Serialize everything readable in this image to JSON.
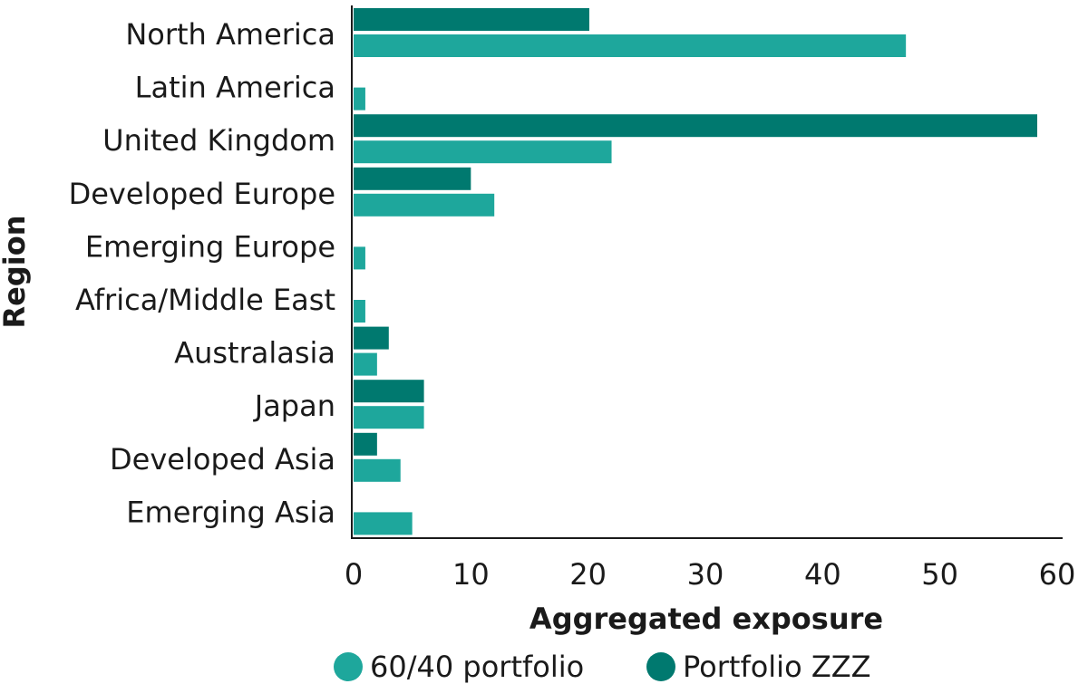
{
  "chart_data": {
    "type": "bar",
    "orientation": "horizontal",
    "title": "",
    "xlabel": "Aggregated exposure",
    "ylabel": "Region",
    "xlim": [
      0,
      60
    ],
    "xticks": [
      0,
      10,
      20,
      30,
      40,
      50,
      60
    ],
    "grid": false,
    "legend_position": "bottom",
    "categories": [
      "North America",
      "Latin America",
      "United Kingdom",
      "Developed Europe",
      "Emerging Europe",
      "Africa/Middle East",
      "Australasia",
      "Japan",
      "Developed Asia",
      "Emerging Asia"
    ],
    "series": [
      {
        "name": "Portfolio ZZZ",
        "color": "#00796f",
        "values": [
          20.1,
          0,
          58.3,
          10,
          0,
          0,
          3,
          6,
          2,
          0
        ]
      },
      {
        "name": "60/40 portfolio",
        "color": "#1ea79c",
        "values": [
          47.1,
          1,
          22,
          12,
          1,
          1,
          2,
          6,
          4,
          5
        ]
      }
    ],
    "legend": [
      {
        "name": "60/40 portfolio",
        "color": "#1ea79c"
      },
      {
        "name": "Portfolio ZZZ",
        "color": "#00796f"
      }
    ]
  }
}
